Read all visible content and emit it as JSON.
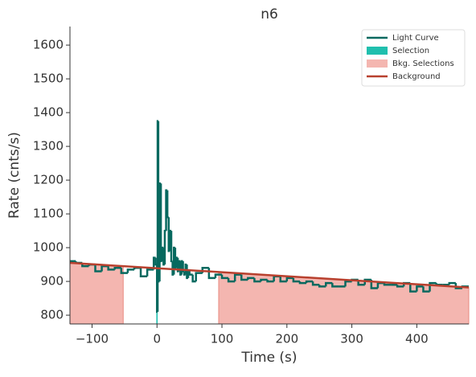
{
  "chart_data": {
    "type": "lightcurve",
    "title": "n6",
    "xlabel": "Time (s)",
    "ylabel": "Rate (cnts/s)",
    "xlim": [
      -134,
      480
    ],
    "ylim": [
      774,
      1655
    ],
    "xticks": [
      {
        "value": -100,
        "label": "−100"
      },
      0,
      100,
      200,
      300,
      400
    ],
    "yticks": [
      800,
      900,
      1000,
      1100,
      1200,
      1300,
      1400,
      1500,
      1600
    ],
    "legend": "upper right",
    "light_curve": {
      "name": "Light Curve",
      "color": "#07695f",
      "x": [
        -134,
        -125,
        -115,
        -105,
        -95,
        -85,
        -75,
        -65,
        -55,
        -45,
        -35,
        -25,
        -15,
        -5,
        -2,
        0,
        1,
        2,
        4,
        6,
        8,
        10,
        12,
        14,
        16,
        18,
        20,
        22,
        24,
        26,
        28,
        30,
        32,
        34,
        36,
        38,
        40,
        42,
        44,
        46,
        48,
        50,
        55,
        60,
        70,
        80,
        90,
        100,
        110,
        120,
        130,
        140,
        150,
        160,
        170,
        180,
        190,
        200,
        210,
        220,
        230,
        240,
        250,
        260,
        270,
        280,
        290,
        300,
        310,
        320,
        330,
        340,
        350,
        360,
        370,
        380,
        390,
        400,
        410,
        420,
        430,
        440,
        450,
        460,
        470
      ],
      "values": [
        960,
        955,
        945,
        950,
        930,
        945,
        935,
        940,
        925,
        935,
        940,
        915,
        935,
        970,
        950,
        810,
        1375,
        900,
        1190,
        960,
        1000,
        950,
        1050,
        1170,
        1090,
        990,
        1050,
        960,
        920,
        1000,
        940,
        970,
        930,
        960,
        920,
        960,
        930,
        920,
        950,
        910,
        930,
        920,
        900,
        925,
        940,
        910,
        920,
        910,
        900,
        920,
        905,
        910,
        900,
        905,
        900,
        915,
        900,
        910,
        900,
        895,
        900,
        890,
        885,
        895,
        885,
        885,
        900,
        905,
        890,
        905,
        880,
        895,
        890,
        890,
        885,
        895,
        870,
        885,
        870,
        895,
        890,
        890,
        895,
        880,
        885
      ]
    },
    "selection": {
      "name": "Selection",
      "color": "#20bfae",
      "x": [
        -1,
        1
      ],
      "value": 810
    },
    "bkg_selections": {
      "name": "Bkg. Selections",
      "color": "#f4b6b0",
      "ranges": [
        [
          -134,
          -52
        ],
        [
          95,
          480
        ]
      ]
    },
    "background": {
      "name": "Background",
      "color": "#b8402e",
      "x": [
        -134,
        480
      ],
      "values": [
        955,
        882
      ]
    }
  }
}
